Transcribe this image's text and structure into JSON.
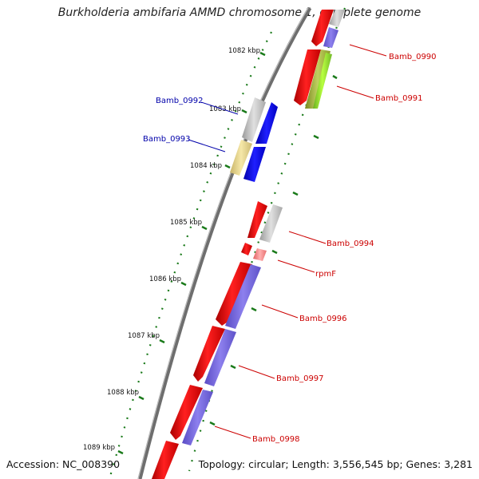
{
  "title": "Burkholderia ambifaria AMMD chromosome 1, complete genome",
  "footer": {
    "accession": "Accession: NC_008390",
    "stats": "Topology: circular; Length: 3,556,545 bp; Genes: 3,281"
  },
  "colors": {
    "backbone": "#6e6e6e",
    "tick_dots": "#1a7a1a",
    "forward_label": "#cc0000",
    "reverse_label": "#0000aa"
  },
  "ticks": [
    "1082 kbp",
    "1083 kbp",
    "1084 kbp",
    "1085 kbp",
    "1086 kbp",
    "1087 kbp",
    "1088 kbp",
    "1089 kbp"
  ],
  "labels": [
    {
      "text": "Bamb_0990",
      "color": "#cc0000"
    },
    {
      "text": "Bamb_0991",
      "color": "#cc0000"
    },
    {
      "text": "Bamb_0992",
      "color": "#0000aa"
    },
    {
      "text": "Bamb_0993",
      "color": "#0000aa"
    },
    {
      "text": "Bamb_0994",
      "color": "#cc0000"
    },
    {
      "text": "rpmF",
      "color": "#cc0000"
    },
    {
      "text": "Bamb_0996",
      "color": "#cc0000"
    },
    {
      "text": "Bamb_0997",
      "color": "#cc0000"
    },
    {
      "text": "Bamb_0998",
      "color": "#cc0000"
    }
  ]
}
